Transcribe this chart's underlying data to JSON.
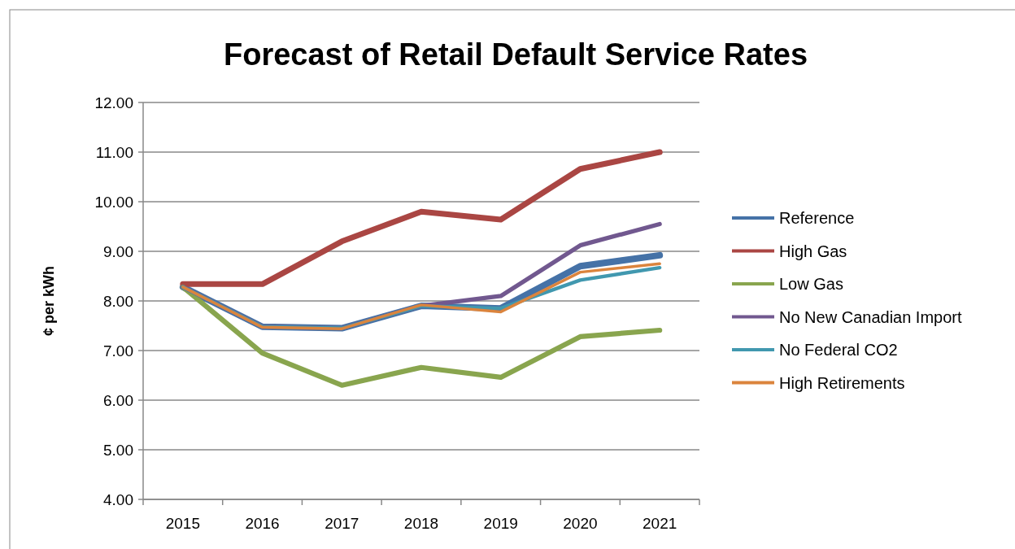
{
  "chart_data": {
    "type": "line",
    "title": "Forecast of Retail Default Service Rates",
    "ylabel": "¢ per kWh",
    "categories": [
      "2015",
      "2016",
      "2017",
      "2018",
      "2019",
      "2020",
      "2021"
    ],
    "ylim": [
      4,
      12
    ],
    "yticks": [
      {
        "value": 4,
        "label": "4.00"
      },
      {
        "value": 5,
        "label": "5.00"
      },
      {
        "value": 6,
        "label": "6.00"
      },
      {
        "value": 7,
        "label": "7.00"
      },
      {
        "value": 8,
        "label": "8.00"
      },
      {
        "value": 9,
        "label": "9.00"
      },
      {
        "value": 10,
        "label": "10.00"
      },
      {
        "value": 11,
        "label": "11.00"
      },
      {
        "value": 12,
        "label": "12.00"
      }
    ],
    "grid": "y",
    "legend": "right",
    "marker": "none",
    "series": [
      {
        "name": "Reference",
        "color": "#4572a7",
        "values": [
          8.28,
          7.48,
          7.45,
          7.9,
          7.85,
          8.7,
          8.92
        ]
      },
      {
        "name": "High Gas",
        "color": "#aa4643",
        "values": [
          8.34,
          8.34,
          9.2,
          9.8,
          9.64,
          10.66,
          11.0
        ]
      },
      {
        "name": "Low Gas",
        "color": "#89a54e",
        "values": [
          8.28,
          6.95,
          6.3,
          6.66,
          6.46,
          7.28,
          7.41
        ]
      },
      {
        "name": "No New Canadian Import",
        "color": "#71588f",
        "values": [
          8.28,
          7.48,
          7.45,
          7.9,
          8.1,
          9.12,
          9.55
        ]
      },
      {
        "name": "No Federal CO2",
        "color": "#4198af",
        "values": [
          8.28,
          7.48,
          7.45,
          7.9,
          7.85,
          8.42,
          8.67
        ]
      },
      {
        "name": "High Retirements",
        "color": "#db843d",
        "values": [
          8.28,
          7.47,
          7.44,
          7.92,
          7.78,
          8.58,
          8.75
        ]
      }
    ]
  }
}
